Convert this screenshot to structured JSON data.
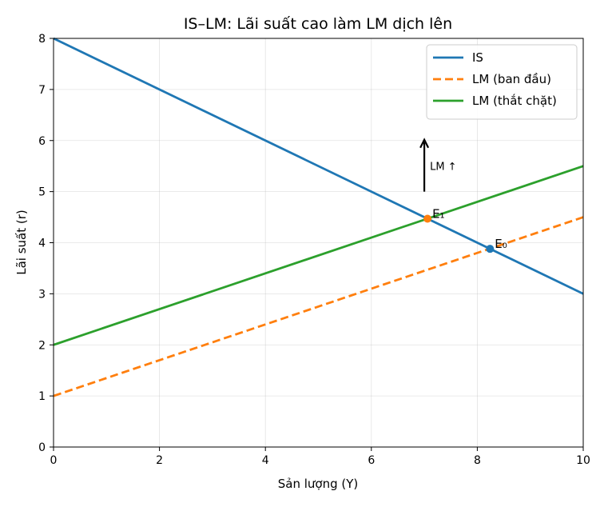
{
  "chart_data": {
    "type": "line",
    "title": "IS–LM: Lãi suất cao làm LM dịch lên",
    "xlabel": "Sản lượng (Y)",
    "ylabel": "Lãi suất (r)",
    "xlim": [
      0,
      10
    ],
    "ylim": [
      0,
      8
    ],
    "xticks": [
      "0",
      "2",
      "4",
      "6",
      "8",
      "10"
    ],
    "yticks": [
      "0",
      "1",
      "2",
      "3",
      "4",
      "5",
      "6",
      "7",
      "8"
    ],
    "grid": true,
    "legend_position": "top-right",
    "series": [
      {
        "name": "IS",
        "x": [
          0,
          10
        ],
        "y": [
          8,
          3
        ],
        "color": "#1f77b4",
        "style": "solid"
      },
      {
        "name": "LM (ban đầu)",
        "x": [
          0,
          10
        ],
        "y": [
          1,
          4.5
        ],
        "color": "#ff7f0e",
        "style": "dashed"
      },
      {
        "name": "LM (thắt chặt)",
        "x": [
          0,
          10
        ],
        "y": [
          2,
          5.5
        ],
        "color": "#2ca02c",
        "style": "solid"
      }
    ],
    "points": [
      {
        "label": "E₀",
        "x": 8.24,
        "y": 3.88,
        "color": "#1f77b4"
      },
      {
        "label": "E₁",
        "x": 7.06,
        "y": 4.47,
        "color": "#ff7f0e"
      }
    ],
    "annotations": [
      {
        "text": "LM ↑",
        "arrow_from": [
          7.0,
          5.0
        ],
        "arrow_to": [
          7.0,
          6.0
        ]
      }
    ]
  }
}
